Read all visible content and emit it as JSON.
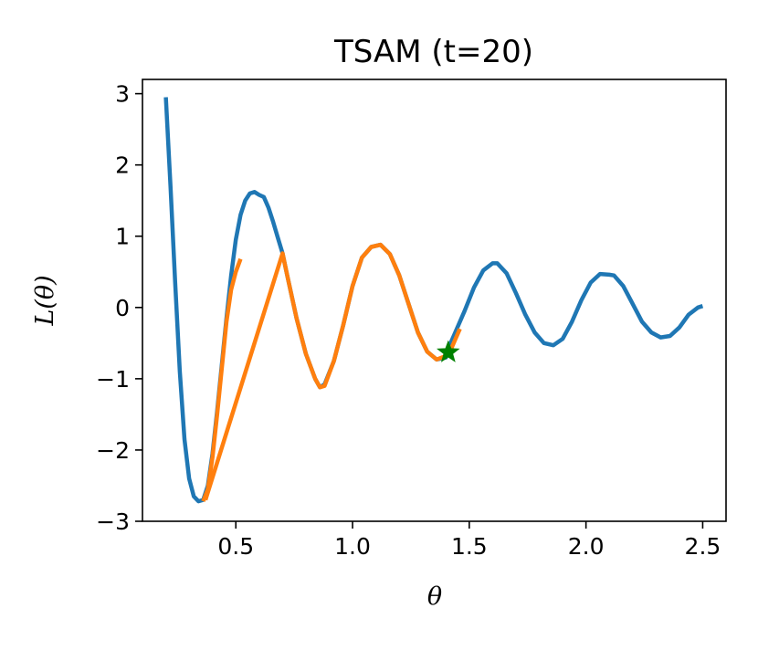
{
  "chart_data": {
    "type": "line",
    "title": "TSAM (t=20)",
    "xlabel": "θ",
    "ylabel": "L(θ)",
    "xlim": [
      0.1,
      2.6
    ],
    "ylim": [
      -3,
      3.2
    ],
    "xticks": [
      0.5,
      1.0,
      1.5,
      2.0,
      2.5
    ],
    "xtick_labels": [
      "0.5",
      "1.0",
      "1.5",
      "2.0",
      "2.5"
    ],
    "yticks": [
      -3,
      -2,
      -1,
      0,
      1,
      2,
      3
    ],
    "ytick_labels": [
      "−3",
      "−2",
      "−1",
      "0",
      "1",
      "2",
      "3"
    ],
    "grid": false,
    "series": [
      {
        "role": "loss-curve",
        "color": "#1f77b4",
        "x": [
          0.2,
          0.22,
          0.24,
          0.26,
          0.28,
          0.3,
          0.32,
          0.34,
          0.36,
          0.38,
          0.4,
          0.42,
          0.44,
          0.46,
          0.48,
          0.5,
          0.52,
          0.54,
          0.56,
          0.58,
          0.6,
          0.62,
          0.64,
          0.66,
          0.68,
          0.7,
          0.72,
          0.76,
          0.8,
          0.84,
          0.86,
          0.88,
          0.92,
          0.96,
          1.0,
          1.04,
          1.08,
          1.12,
          1.16,
          1.2,
          1.24,
          1.28,
          1.32,
          1.36,
          1.4,
          1.42,
          1.44,
          1.48,
          1.52,
          1.56,
          1.6,
          1.62,
          1.66,
          1.7,
          1.74,
          1.78,
          1.82,
          1.86,
          1.9,
          1.94,
          1.98,
          2.02,
          2.06,
          2.1,
          2.12,
          2.16,
          2.2,
          2.24,
          2.28,
          2.32,
          2.36,
          2.4,
          2.44,
          2.48,
          2.5
        ],
        "y": [
          2.95,
          1.7,
          0.35,
          -0.9,
          -1.85,
          -2.4,
          -2.65,
          -2.72,
          -2.7,
          -2.5,
          -2.05,
          -1.45,
          -0.8,
          -0.15,
          0.45,
          0.95,
          1.3,
          1.5,
          1.6,
          1.62,
          1.58,
          1.55,
          1.4,
          1.2,
          0.98,
          0.76,
          0.45,
          -0.15,
          -0.65,
          -1.0,
          -1.12,
          -1.08,
          -0.75,
          -0.25,
          0.3,
          0.7,
          0.85,
          0.88,
          0.75,
          0.45,
          0.05,
          -0.35,
          -0.62,
          -0.73,
          -0.7,
          -0.5,
          -0.35,
          -0.05,
          0.28,
          0.52,
          0.62,
          0.62,
          0.48,
          0.2,
          -0.1,
          -0.35,
          -0.5,
          -0.53,
          -0.44,
          -0.2,
          0.1,
          0.35,
          0.47,
          0.46,
          0.45,
          0.3,
          0.05,
          -0.2,
          -0.35,
          -0.42,
          -0.4,
          -0.28,
          -0.1,
          0.0,
          0.02
        ]
      },
      {
        "role": "tsam-path-1",
        "color": "#ff7f0e",
        "x": [
          0.36,
          0.38,
          0.4,
          0.42,
          0.44,
          0.46,
          0.48,
          0.5,
          0.52
        ],
        "y": [
          -2.72,
          -2.55,
          -2.1,
          -1.5,
          -0.85,
          -0.2,
          0.25,
          0.5,
          0.68
        ]
      },
      {
        "role": "tsam-path-2",
        "color": "#ff7f0e",
        "x": [
          0.37,
          0.7,
          0.72,
          0.76,
          0.8,
          0.84,
          0.86,
          0.88,
          0.92,
          0.96,
          1.0,
          1.04,
          1.08,
          1.12,
          1.16,
          1.2,
          1.24,
          1.28,
          1.32,
          1.36,
          1.4,
          1.42,
          1.44,
          1.46
        ],
        "y": [
          -2.7,
          0.76,
          0.45,
          -0.15,
          -0.65,
          -1.0,
          -1.12,
          -1.1,
          -0.75,
          -0.25,
          0.3,
          0.7,
          0.85,
          0.88,
          0.75,
          0.45,
          0.05,
          -0.35,
          -0.62,
          -0.73,
          -0.68,
          -0.6,
          -0.45,
          -0.3
        ]
      }
    ],
    "marker": {
      "x": 1.41,
      "y": -0.63,
      "shape": "star",
      "color": "#008000"
    }
  }
}
